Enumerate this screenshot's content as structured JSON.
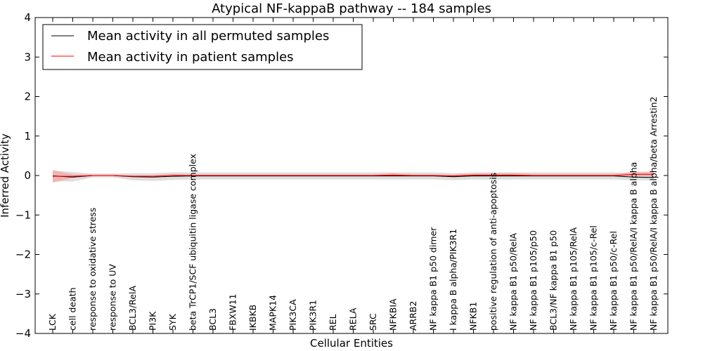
{
  "chart_data": {
    "type": "line",
    "title": "Atypical NF-kappaB pathway -- 184 samples",
    "xlabel": "Cellular Entities",
    "ylabel": "Inferred Activity",
    "ylim": [
      -4,
      4
    ],
    "yticks": [
      -4,
      -3,
      -2,
      -1,
      0,
      1,
      2,
      3,
      4
    ],
    "ytick_labels": [
      "−4",
      "−3",
      "−2",
      "−1",
      "0",
      "1",
      "2",
      "3",
      "4"
    ],
    "legend_position": "upper-left",
    "grid": false,
    "categories": [
      "LCK",
      "cell death",
      "response to oxidative stress",
      "response to UV",
      "BCL3/RelA",
      "PI3K",
      "SYK",
      "beta TrCP1/SCF ubiquitin ligase complex",
      "BCL3",
      "FBXW11",
      "IKBKB",
      "MAPK14",
      "PIK3CA",
      "PIK3R1",
      "REL",
      "RELA",
      "SRC",
      "NFKBIA",
      "ARRB2",
      "NF kappa B1 p50 dimer",
      "I kappa B alpha/PIK3R1",
      "NFKB1",
      "positive regulation of anti-apoptosis",
      "NF kappa B1 p50/RelA",
      "NF kappa B1 p105/p50",
      "BCL3/NF kappa B1 p50",
      "NF kappa B1 p105/RelA",
      "NF kappa B1 p105/c-Rel",
      "NF kappa B1 p50/c-Rel",
      "NF kappa B1 p50/RelA/I kappa B alpha",
      "NF kappa B1 p50/RelA/I kappa B alpha/beta Arrestin2"
    ],
    "series": [
      {
        "name": "Mean activity in all permuted samples",
        "color": "#000000",
        "values": [
          -0.01,
          -0.04,
          0.0,
          0.0,
          -0.03,
          -0.04,
          -0.02,
          -0.01,
          -0.01,
          -0.01,
          -0.01,
          -0.01,
          -0.01,
          -0.01,
          -0.01,
          -0.01,
          -0.01,
          -0.01,
          -0.01,
          -0.01,
          -0.03,
          -0.01,
          -0.01,
          -0.01,
          -0.01,
          -0.01,
          -0.01,
          -0.01,
          -0.01,
          -0.04,
          -0.05
        ],
        "band_low": [
          -0.15,
          -0.15,
          -0.05,
          -0.05,
          -0.12,
          -0.14,
          -0.11,
          -0.1,
          -0.1,
          -0.1,
          -0.1,
          -0.1,
          -0.1,
          -0.1,
          -0.1,
          -0.1,
          -0.1,
          -0.1,
          -0.1,
          -0.1,
          -0.12,
          -0.1,
          -0.1,
          -0.1,
          -0.1,
          -0.1,
          -0.1,
          -0.1,
          -0.1,
          -0.12,
          -0.12
        ],
        "band_high": [
          0.12,
          0.09,
          0.05,
          0.05,
          0.06,
          0.06,
          0.08,
          0.08,
          0.08,
          0.08,
          0.08,
          0.08,
          0.08,
          0.08,
          0.08,
          0.08,
          0.08,
          0.08,
          0.08,
          0.08,
          0.06,
          0.08,
          0.08,
          0.08,
          0.08,
          0.08,
          0.08,
          0.08,
          0.08,
          0.06,
          0.05
        ],
        "band_color": "#c8c8c8"
      },
      {
        "name": "Mean activity in patient samples",
        "color": "#ff0000",
        "values": [
          -0.02,
          -0.02,
          0.0,
          0.0,
          -0.02,
          -0.02,
          0.0,
          0.0,
          0.0,
          0.0,
          0.0,
          0.0,
          0.0,
          0.0,
          0.0,
          0.0,
          0.0,
          0.01,
          0.0,
          0.0,
          -0.01,
          0.01,
          0.01,
          0.01,
          0.0,
          0.0,
          0.0,
          0.0,
          0.0,
          0.03,
          0.03
        ],
        "band_low": [
          -0.18,
          -0.06,
          -0.02,
          -0.02,
          -0.04,
          -0.04,
          -0.02,
          -0.02,
          -0.02,
          -0.02,
          -0.02,
          -0.02,
          -0.02,
          -0.02,
          -0.02,
          -0.02,
          -0.02,
          -0.02,
          -0.02,
          -0.02,
          -0.03,
          -0.02,
          -0.02,
          -0.02,
          -0.02,
          -0.02,
          -0.02,
          -0.02,
          -0.02,
          -0.01,
          -0.01
        ],
        "band_high": [
          0.14,
          0.03,
          0.02,
          0.02,
          0.01,
          0.01,
          0.04,
          0.03,
          0.03,
          0.03,
          0.03,
          0.03,
          0.03,
          0.03,
          0.03,
          0.03,
          0.03,
          0.06,
          0.03,
          0.03,
          0.02,
          0.05,
          0.06,
          0.06,
          0.04,
          0.04,
          0.04,
          0.04,
          0.04,
          0.09,
          0.1
        ],
        "band_color": "#f4a5a5"
      }
    ]
  }
}
